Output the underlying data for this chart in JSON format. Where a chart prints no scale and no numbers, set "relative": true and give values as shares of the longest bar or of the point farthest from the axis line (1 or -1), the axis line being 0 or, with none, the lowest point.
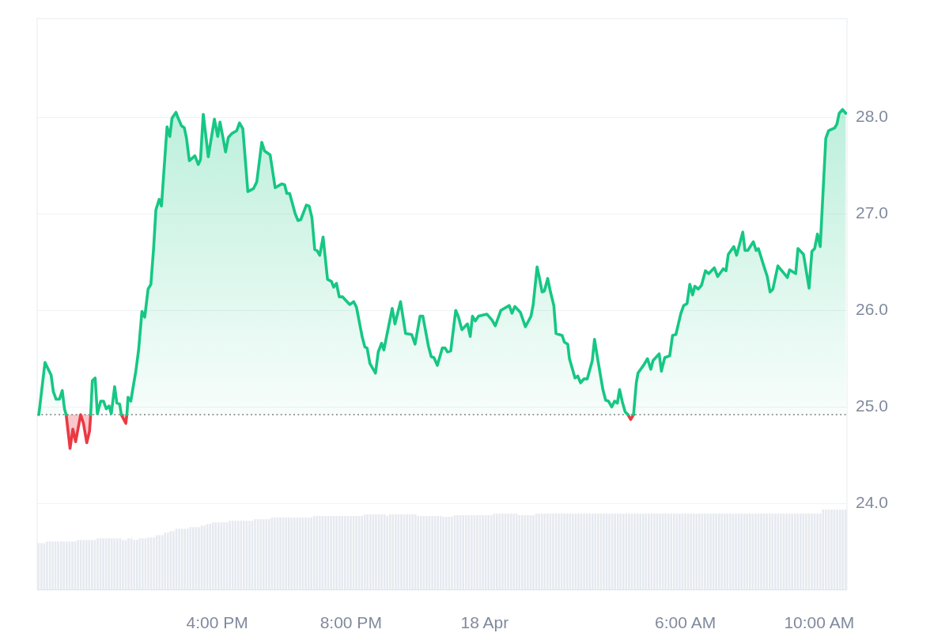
{
  "chart_data": [
    {
      "type": "area",
      "series": [
        {
          "color": "#16c784",
          "x": [
            "--04-17T10:40",
            "--04-17T10:51",
            "--04-17T11:02",
            "--04-17T11:06",
            "--04-17T11:11",
            "--04-17T11:17",
            "--04-17T11:22",
            "--04-17T11:26",
            "--04-17T11:29",
            "--04-17T11:50",
            "--04-17T12:13",
            "--04-17T12:16",
            "--04-17T12:21",
            "--04-17T12:25",
            "--04-17T12:31",
            "--04-17T12:36",
            "--04-17T12:41",
            "--04-17T12:46",
            "--04-17T12:50",
            "--04-17T12:56",
            "--04-17T13:00",
            "--04-17T13:05",
            "--04-17T13:08",
            "--04-17T13:13",
            "--04-17T13:18",
            "--04-17T13:20",
            "--04-17T13:25",
            "--04-17T13:29",
            "--04-17T13:34",
            "--04-17T13:39",
            "--04-17T13:45",
            "--04-17T13:50",
            "--04-17T13:56",
            "--04-17T14:01",
            "--04-17T14:06",
            "--04-17T14:10",
            "--04-17T14:16",
            "--04-17T14:20",
            "--04-17T14:25",
            "--04-17T14:30",
            "--04-17T14:35",
            "--04-17T14:39",
            "--04-17T14:46",
            "--04-17T14:50",
            "--04-17T14:56",
            "--04-17T15:01",
            "--04-17T15:05",
            "--04-17T15:10",
            "--04-17T15:20",
            "--04-17T15:26",
            "--04-17T15:30",
            "--04-17T15:35",
            "--04-17T15:40",
            "--04-17T15:44",
            "--04-17T15:55",
            "--04-17T16:01",
            "--04-17T16:05",
            "--04-17T16:10",
            "--04-17T16:15",
            "--04-17T16:20",
            "--04-17T16:26",
            "--04-17T16:35",
            "--04-17T16:40",
            "--04-17T16:46",
            "--04-17T16:55",
            "--04-17T17:05",
            "--04-17T17:11",
            "--04-17T17:20",
            "--04-17T17:25",
            "--04-17T17:35",
            "--04-17T17:44",
            "--04-17T17:56",
            "--04-17T18:01",
            "--04-17T18:05",
            "--04-17T18:10",
            "--04-17T18:20",
            "--04-17T18:25",
            "--04-17T18:30",
            "--04-17T18:40",
            "--04-17T18:45",
            "--04-17T18:50",
            "--04-17T18:55",
            "--04-17T18:59",
            "--04-17T19:04",
            "--04-17T19:10",
            "--04-17T19:18",
            "--04-17T19:25",
            "--04-17T19:29",
            "--04-17T19:34",
            "--04-17T19:39",
            "--04-17T19:45",
            "--04-17T19:58",
            "--04-17T20:05",
            "--04-17T20:10",
            "--04-17T20:20",
            "--04-17T20:25",
            "--04-17T20:29",
            "--04-17T20:34",
            "--04-17T20:44",
            "--04-17T20:49",
            "--04-17T20:55",
            "--04-17T20:59",
            "--04-17T21:14",
            "--04-17T21:19",
            "--04-17T21:29",
            "--04-17T21:38",
            "--04-17T21:49",
            "--04-17T21:55",
            "--04-17T22:04",
            "--04-17T22:09",
            "--04-17T22:19",
            "--04-17T22:24",
            "--04-17T22:29",
            "--04-17T22:35",
            "--04-17T22:44",
            "--04-17T22:49",
            "--04-17T22:53",
            "--04-17T22:59",
            "--04-17T23:08",
            "--04-17T23:13",
            "--04-17T23:19",
            "--04-17T23:29",
            "--04-17T23:34",
            "--04-17T23:38",
            "--04-17T23:43",
            "--04-17T23:49",
            "--04-18T00:04",
            "--04-18T00:13",
            "--04-18T00:19",
            "--04-18T00:29",
            "--04-18T00:44",
            "--04-18T00:49",
            "--04-18T00:54",
            "--04-18T01:04",
            "--04-18T01:13",
            "--04-18T01:23",
            "--04-18T01:27",
            "--04-18T01:34",
            "--04-18T01:38",
            "--04-18T01:43",
            "--04-18T01:47",
            "--04-18T01:53",
            "--04-18T01:58",
            "--04-18T02:04",
            "--04-18T02:08",
            "--04-18T02:19",
            "--04-18T02:23",
            "--04-18T02:29",
            "--04-18T02:32",
            "--04-18T02:42",
            "--04-18T02:47",
            "--04-18T02:52",
            "--04-18T02:58",
            "--04-18T03:04",
            "--04-18T03:13",
            "--04-18T03:17",
            "--04-18T03:22",
            "--04-18T03:32",
            "--04-18T03:37",
            "--04-18T03:42",
            "--04-18T03:48",
            "--04-18T03:53",
            "--04-18T03:58",
            "--04-18T04:02",
            "--04-18T04:07",
            "--04-18T04:12",
            "--04-18T04:17",
            "--04-18T04:22",
            "--04-18T04:27",
            "--04-18T04:32",
            "--04-18T04:35",
            "--04-18T04:46",
            "--04-18T04:52",
            "--04-18T04:58",
            "--04-18T05:02",
            "--04-18T05:13",
            "--04-18T05:17",
            "--04-18T05:23",
            "--04-18T05:32",
            "--04-18T05:37",
            "--04-18T05:43",
            "--04-18T05:52",
            "--04-18T05:57",
            "--04-18T06:03",
            "--04-18T06:08",
            "--04-18T06:13",
            "--04-18T06:17",
            "--04-18T06:23",
            "--04-18T06:29",
            "--04-18T06:36",
            "--04-18T06:42",
            "--04-18T06:52",
            "--04-18T06:58",
            "--04-18T07:08",
            "--04-18T07:13",
            "--04-18T07:17",
            "--04-18T07:27",
            "--04-18T07:32",
            "--04-18T07:43",
            "--04-18T07:47",
            "--04-18T07:52",
            "--04-18T08:02",
            "--04-18T08:07",
            "--04-18T08:11",
            "--04-18T08:23",
            "--04-18T08:27",
            "--04-18T08:32",
            "--04-18T08:37",
            "--04-18T08:46",
            "--04-18T09:03",
            "--04-18T09:07",
            "--04-18T09:18",
            "--04-18T09:22",
            "--04-18T09:32",
            "--04-18T09:42",
            "--04-18T09:47",
            "--04-18T09:52",
            "--04-18T09:57",
            "--04-18T10:02",
            "--04-18T10:07",
            "--04-18T10:12",
            "--04-18T10:17",
            "--04-18T10:28",
            "--04-18T10:32",
            "--04-18T10:36",
            "--04-18T10:42",
            "--04-18T10:48"
          ],
          "values": [
            24.92,
            25.46,
            25.33,
            25.16,
            25.08,
            25.08,
            25.17,
            24.98,
            24.92,
            null,
            24.92,
            25.27,
            25.3,
            24.93,
            25.06,
            25.06,
            24.98,
            25.01,
            24.93,
            25.21,
            25.04,
            25.03,
            24.92,
            null,
            24.92,
            25.1,
            25.06,
            25.2,
            25.37,
            25.59,
            25.99,
            25.93,
            26.22,
            26.27,
            26.65,
            27.04,
            27.15,
            27.08,
            27.49,
            27.9,
            27.8,
            27.99,
            28.05,
            27.99,
            27.91,
            27.89,
            27.78,
            27.55,
            27.6,
            27.51,
            27.56,
            28.03,
            27.79,
            27.59,
            27.98,
            27.8,
            27.95,
            27.8,
            27.64,
            27.79,
            27.83,
            27.86,
            27.94,
            27.88,
            27.23,
            27.26,
            27.33,
            27.74,
            27.65,
            27.61,
            27.27,
            27.31,
            27.3,
            27.21,
            27.21,
            27.0,
            26.93,
            26.94,
            27.09,
            27.08,
            26.96,
            26.63,
            26.62,
            26.57,
            26.76,
            26.32,
            26.3,
            26.24,
            26.28,
            26.14,
            26.14,
            26.06,
            26.09,
            26.03,
            25.73,
            25.62,
            25.61,
            25.45,
            25.35,
            25.57,
            25.66,
            25.59,
            26.02,
            25.86,
            26.09,
            25.76,
            25.75,
            25.65,
            25.94,
            25.94,
            25.63,
            25.52,
            25.51,
            25.43,
            25.61,
            25.61,
            25.57,
            25.58,
            26.0,
            25.93,
            25.8,
            25.86,
            25.73,
            25.94,
            25.89,
            25.94,
            25.96,
            25.9,
            25.84,
            26.0,
            26.05,
            25.97,
            26.04,
            25.98,
            25.83,
            25.94,
            26.06,
            26.45,
            26.34,
            26.19,
            26.2,
            26.33,
            26.19,
            26.05,
            25.76,
            25.74,
            25.67,
            25.65,
            25.5,
            25.3,
            25.32,
            25.25,
            25.29,
            25.29,
            25.48,
            25.7,
            25.52,
            25.18,
            25.07,
            25.06,
            25.0,
            25.06,
            25.04,
            25.18,
            25.05,
            24.95,
            24.92,
            null,
            24.92,
            25.25,
            25.35,
            25.44,
            25.5,
            25.39,
            25.48,
            25.55,
            25.37,
            25.51,
            25.53,
            25.74,
            25.75,
            25.97,
            26.05,
            26.07,
            26.27,
            26.16,
            26.25,
            26.22,
            26.26,
            26.41,
            26.38,
            26.44,
            26.35,
            26.43,
            26.41,
            26.58,
            26.66,
            26.57,
            26.81,
            26.62,
            26.62,
            26.71,
            26.62,
            26.64,
            26.42,
            26.35,
            26.19,
            26.22,
            26.46,
            26.34,
            26.42,
            26.38,
            26.64,
            26.58,
            26.23,
            26.61,
            26.64,
            26.79,
            26.66,
            27.22,
            27.78,
            27.86,
            27.89,
            27.93,
            28.04,
            28.08,
            28.04
          ]
        },
        {
          "color": "#ea3943",
          "x": [
            "--04-17T11:29",
            "--04-17T11:36",
            "--04-17T11:41",
            "--04-17T11:46",
            "--04-17T11:55",
            "--04-17T12:00",
            "--04-17T12:06",
            "--04-17T12:11",
            "--04-17T12:13",
            "--04-17T12:42",
            "--04-17T13:08",
            "--04-17T13:16",
            "--04-17T13:18"
          ],
          "values": [
            24.92,
            24.57,
            24.77,
            24.64,
            24.92,
            24.83,
            24.63,
            24.75,
            24.92,
            null,
            24.92,
            24.83,
            24.92
          ]
        },
        {
          "type": "line",
          "color": "#ea3943",
          "x": [
            "--04-18T04:17",
            "--04-18T04:22",
            "--04-18T04:27"
          ],
          "values": [
            24.92,
            24.87,
            24.92
          ]
        }
      ],
      "xlim": [
        "--04-17T10:37",
        "--04-18T10:50"
      ],
      "xticks": [
        {
          "value": "--04-17T16:00",
          "label": "4:00 PM"
        },
        {
          "value": "--04-17T20:00",
          "label": "8:00 PM"
        },
        {
          "value": "--04-18",
          "label": "18 Apr"
        },
        {
          "value": "--04-18T06:00",
          "label": "6:00 AM"
        },
        {
          "value": "--04-18T10:00",
          "label": "10:00 AM"
        }
      ],
      "ylim": [
        23.11,
        29.02
      ],
      "yticks": [
        {
          "value": 24,
          "label": "24.0"
        },
        {
          "value": 25,
          "label": "25.0"
        },
        {
          "value": 26,
          "label": "26.0"
        },
        {
          "value": 27,
          "label": "27.0"
        },
        {
          "value": 28,
          "label": "28.0"
        }
      ],
      "grid": "y",
      "ref_lines": [
        {
          "axis": "y",
          "value": 24.92,
          "color": "#9e9e9e",
          "line_style": "dotted"
        }
      ]
    },
    {
      "type": "bar",
      "relative": true,
      "color": "#e6eaf0",
      "categories": [
        null,
        null,
        null,
        null,
        null,
        null,
        null,
        null,
        null,
        null,
        null,
        null,
        null,
        null,
        null,
        null,
        null,
        null,
        null,
        null,
        null,
        null,
        null,
        null,
        null,
        null,
        null,
        null,
        null,
        null,
        null,
        null,
        null,
        null,
        null,
        null,
        null,
        null,
        null,
        null,
        null,
        null,
        null,
        null,
        null,
        null,
        null,
        null,
        null,
        null,
        null,
        null,
        null,
        null,
        null,
        null,
        null,
        null,
        null,
        null,
        null,
        null,
        null,
        null,
        null,
        null,
        null,
        null,
        null,
        null,
        null,
        null,
        null,
        null,
        null,
        null,
        null,
        null,
        null,
        null,
        null,
        null,
        null,
        null,
        null,
        null,
        null,
        null,
        null,
        null,
        null,
        null,
        null,
        null,
        null,
        null,
        null,
        null,
        null,
        null,
        null,
        null,
        null,
        null,
        null,
        null,
        null,
        null,
        null,
        null,
        null,
        null,
        null,
        null,
        null,
        null,
        null,
        null,
        null,
        null,
        null,
        null,
        null,
        null,
        null,
        null,
        null,
        null,
        null,
        null,
        null,
        null,
        null,
        null,
        null,
        null,
        null,
        null,
        null,
        null,
        null,
        null,
        null,
        null,
        null,
        null,
        null,
        null,
        null,
        null,
        null,
        null,
        null,
        null,
        null,
        null,
        null,
        null,
        null,
        null,
        null,
        null,
        null,
        null,
        null,
        null,
        null,
        null,
        null,
        null,
        null,
        null,
        null,
        null,
        null,
        null,
        null,
        null,
        null,
        null,
        null,
        null,
        null,
        null,
        null,
        null,
        null,
        null,
        null,
        null,
        null,
        null,
        null,
        null,
        null,
        null,
        null,
        null,
        null,
        null,
        null,
        null,
        null,
        null,
        null,
        null,
        null,
        null,
        null,
        null,
        null,
        null,
        null,
        null,
        null,
        null,
        null,
        null,
        null,
        null,
        null,
        null,
        null,
        null,
        null,
        null,
        null,
        null,
        null,
        null,
        null,
        null,
        null,
        null,
        null,
        null,
        null,
        null,
        null,
        null,
        null,
        null,
        null,
        null,
        null,
        null,
        null,
        null,
        null,
        null,
        null,
        null,
        null,
        null,
        null,
        null,
        null,
        null,
        null,
        null,
        null,
        null,
        null,
        null,
        null,
        null,
        null,
        null,
        null,
        null,
        null,
        null,
        null,
        null,
        null,
        null,
        null,
        null,
        null,
        null,
        null,
        null,
        null,
        null,
        null,
        null,
        null,
        null
      ],
      "values": [
        0.58,
        0.58,
        0.58,
        0.6,
        0.6,
        0.6,
        0.6,
        0.6,
        0.6,
        0.6,
        0.6,
        0.6,
        0.6,
        0.6,
        0.62,
        0.62,
        0.62,
        0.62,
        0.62,
        0.62,
        0.62,
        0.64,
        0.64,
        0.64,
        0.64,
        0.64,
        0.64,
        0.64,
        0.64,
        0.64,
        0.62,
        0.62,
        0.64,
        0.64,
        0.62,
        0.62,
        0.64,
        0.64,
        0.64,
        0.65,
        0.65,
        0.65,
        0.68,
        0.68,
        0.68,
        0.71,
        0.71,
        0.73,
        0.73,
        0.76,
        0.76,
        0.76,
        0.76,
        0.76,
        0.78,
        0.78,
        0.78,
        0.78,
        0.8,
        0.8,
        0.82,
        0.82,
        0.84,
        0.84,
        0.84,
        0.84,
        0.84,
        0.84,
        0.86,
        0.86,
        0.86,
        0.86,
        0.86,
        0.86,
        0.86,
        0.86,
        0.86,
        0.88,
        0.88,
        0.88,
        0.88,
        0.88,
        0.88,
        0.9,
        0.9,
        0.9,
        0.9,
        0.9,
        0.9,
        0.9,
        0.9,
        0.9,
        0.9,
        0.9,
        0.9,
        0.9,
        0.9,
        0.9,
        0.92,
        0.92,
        0.92,
        0.92,
        0.92,
        0.92,
        0.92,
        0.92,
        0.92,
        0.92,
        0.92,
        0.92,
        0.92,
        0.92,
        0.92,
        0.92,
        0.92,
        0.92,
        0.94,
        0.94,
        0.94,
        0.94,
        0.94,
        0.94,
        0.94,
        0.94,
        0.92,
        0.94,
        0.94,
        0.94,
        0.94,
        0.94,
        0.94,
        0.94,
        0.94,
        0.94,
        0.94,
        0.92,
        0.92,
        0.92,
        0.92,
        0.92,
        0.92,
        0.92,
        0.92,
        0.92,
        0.91,
        0.91,
        0.91,
        0.91,
        0.93,
        0.93,
        0.93,
        0.93,
        0.93,
        0.93,
        0.93,
        0.93,
        0.93,
        0.93,
        0.93,
        0.93,
        0.93,
        0.93,
        0.95,
        0.95,
        0.95,
        0.95,
        0.95,
        0.95,
        0.95,
        0.95,
        0.95,
        0.93,
        0.93,
        0.93,
        0.93,
        0.93,
        0.93,
        0.95,
        0.95,
        0.95,
        0.95,
        0.95,
        0.95,
        0.95,
        0.95,
        0.95,
        0.95,
        0.95,
        0.95,
        0.95,
        0.95,
        0.95,
        0.95,
        0.95,
        0.95,
        0.95,
        0.95,
        0.95,
        0.95,
        0.95,
        0.95,
        0.95,
        0.95,
        0.95,
        0.95,
        0.95,
        0.95,
        0.95,
        0.95,
        0.95,
        0.95,
        0.95,
        0.95,
        0.95,
        0.95,
        0.95,
        0.95,
        0.95,
        0.95,
        0.95,
        0.95,
        0.95,
        0.95,
        0.95,
        0.95,
        0.95,
        0.95,
        0.95,
        0.95,
        0.95,
        0.95,
        0.95,
        0.95,
        0.95,
        0.95,
        0.95,
        0.95,
        0.95,
        0.95,
        0.95,
        0.95,
        0.95,
        0.95,
        0.95,
        0.95,
        0.95,
        0.95,
        0.95,
        0.95,
        0.95,
        0.95,
        0.95,
        0.95,
        0.95,
        0.95,
        0.95,
        0.95,
        0.95,
        0.95,
        0.95,
        0.95,
        0.95,
        0.95,
        0.95,
        0.95,
        0.95,
        0.95,
        0.95,
        0.95,
        0.95,
        0.95,
        0.95,
        0.95,
        0.95,
        0.95,
        0.95,
        0.95,
        0.95,
        0.95,
        1,
        1,
        1,
        1,
        1,
        1,
        1,
        1,
        1
      ]
    }
  ]
}
